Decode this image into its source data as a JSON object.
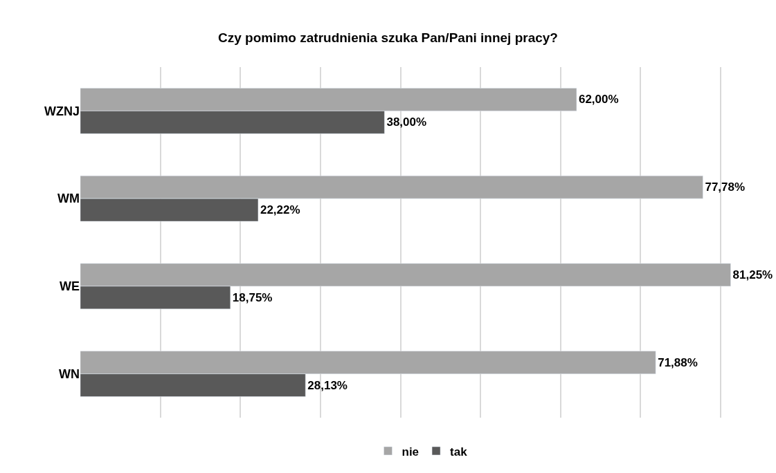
{
  "chart_data": {
    "type": "bar",
    "orientation": "horizontal",
    "title": "Czy pomimo zatrudnienia szuka Pan/Pani innej pracy?",
    "categories": [
      "WZNJ",
      "WM",
      "WE",
      "WN"
    ],
    "series": [
      {
        "name": "nie",
        "color": "#a6a6a6",
        "values": [
          62.0,
          77.78,
          81.25,
          71.88
        ],
        "value_labels": [
          "62,00%",
          "77,78%",
          "81,25%",
          "71,88%"
        ]
      },
      {
        "name": "tak",
        "color": "#595959",
        "values": [
          38.0,
          22.22,
          18.75,
          28.13
        ],
        "value_labels": [
          "38,00%",
          "22,22%",
          "18,75%",
          "28,13%"
        ]
      }
    ],
    "grid": "x",
    "legend": "bottom",
    "tick_labels": "y"
  }
}
